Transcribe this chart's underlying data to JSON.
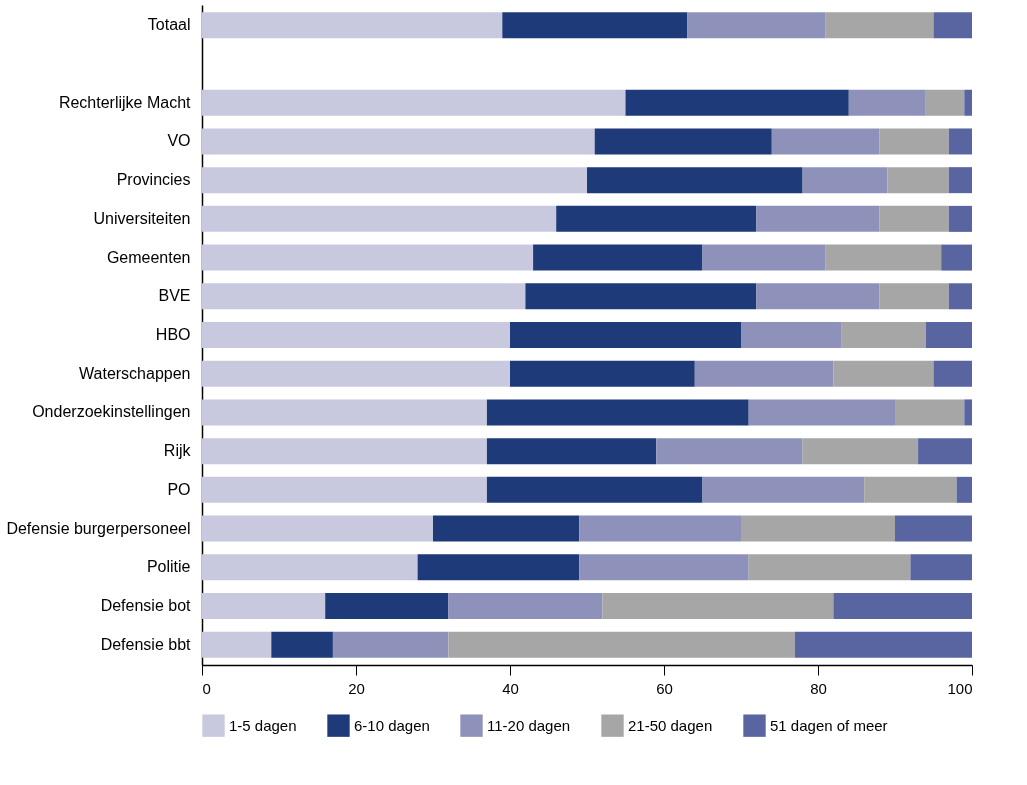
{
  "chart_data": {
    "type": "bar",
    "orientation": "horizontal",
    "stacked": true,
    "categories": [
      "Totaal",
      null,
      "Rechterlijke Macht",
      "VO",
      "Provincies",
      "Universiteiten",
      "Gemeenten",
      "BVE",
      "HBO",
      "Waterschappen",
      "Onderzoekinstellingen",
      "Rijk",
      "PO",
      "Defensie burgerpersoneel",
      "Politie",
      "Defensie bot",
      "Defensie bbt"
    ],
    "series": [
      {
        "name": "1-5 dagen",
        "color": "#c8c8de",
        "values": [
          39,
          null,
          55,
          51,
          50,
          46,
          43,
          42,
          40,
          40,
          37,
          37,
          37,
          30,
          28,
          16,
          9
        ]
      },
      {
        "name": "6-10 dagen",
        "color": "#1f3a78",
        "values": [
          24,
          null,
          29,
          23,
          28,
          26,
          22,
          30,
          30,
          24,
          34,
          22,
          28,
          19,
          21,
          16,
          8
        ]
      },
      {
        "name": "11-20 dagen",
        "color": "#8e92bb",
        "values": [
          18,
          null,
          10,
          14,
          11,
          16,
          16,
          16,
          13,
          18,
          19,
          19,
          21,
          21,
          22,
          20,
          15
        ]
      },
      {
        "name": "21-50 dagen",
        "color": "#a6a6a6",
        "values": [
          14,
          null,
          5,
          9,
          8,
          9,
          15,
          9,
          11,
          13,
          9,
          15,
          12,
          20,
          21,
          30,
          45
        ]
      },
      {
        "name": "51 dagen of meer",
        "color": "#5865a0",
        "values": [
          5,
          null,
          1,
          3,
          3,
          3,
          4,
          3,
          6,
          5,
          1,
          7,
          2,
          10,
          8,
          18,
          23
        ]
      }
    ],
    "xlim": [
      0,
      100
    ],
    "xticks": [
      0,
      20,
      40,
      60,
      80,
      100
    ],
    "grid": false,
    "legend": "bottom"
  }
}
